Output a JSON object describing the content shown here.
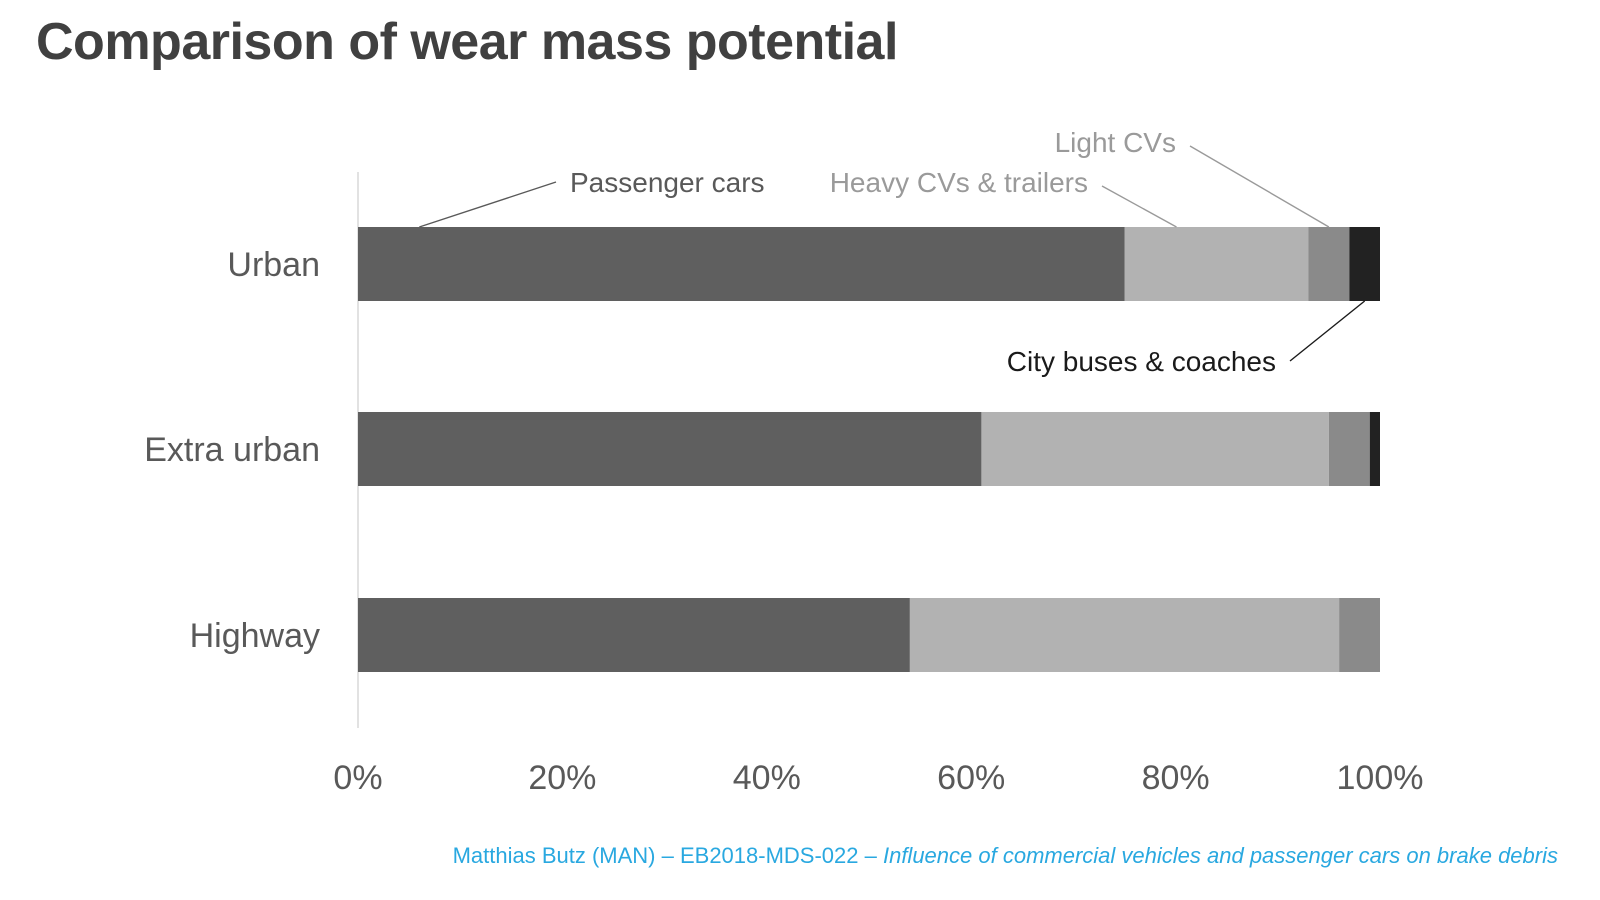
{
  "title": "Comparison of wear mass potential",
  "footer": {
    "source": "Matthias Butz (MAN) – EB2018-MDS-022 – ",
    "paper": "Influence of commercial vehicles and passenger cars on brake debris"
  },
  "chart_data": {
    "type": "bar",
    "orientation": "horizontal",
    "stacked": true,
    "categories": [
      "Urban",
      "Extra urban",
      "Highway"
    ],
    "series": [
      {
        "name": "Passenger cars",
        "color": "#5f5f5f",
        "values": [
          75,
          61,
          54
        ]
      },
      {
        "name": "Heavy CVs & trailers",
        "color": "#b2b2b2",
        "values": [
          18,
          34,
          42
        ]
      },
      {
        "name": "Light CVs",
        "color": "#8a8a8a",
        "values": [
          4,
          4,
          4
        ]
      },
      {
        "name": "City buses & coaches",
        "color": "#222222",
        "values": [
          3,
          1,
          0
        ]
      }
    ],
    "xlim": [
      0,
      100
    ],
    "x_ticks": [
      "0%",
      "20%",
      "40%",
      "60%",
      "80%",
      "100%"
    ],
    "grid": false,
    "legend": "callout labels on Urban bar",
    "label_colors": {
      "Passenger cars": "#595959",
      "Heavy CVs & trailers": "#9a9a9a",
      "Light CVs": "#9a9a9a",
      "City buses & coaches": "#1a1a1a"
    }
  }
}
